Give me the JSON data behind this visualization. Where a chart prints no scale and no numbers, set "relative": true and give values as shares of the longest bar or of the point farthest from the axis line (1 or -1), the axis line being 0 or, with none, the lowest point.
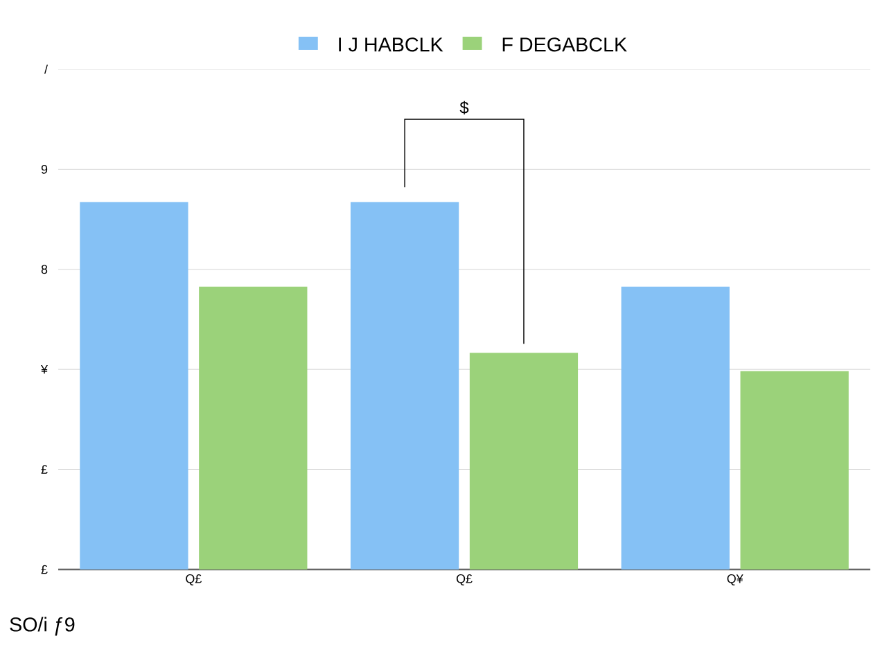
{
  "chart_data": {
    "type": "bar",
    "relative": true,
    "categories": [
      "Q£",
      "Q£",
      "Q¥"
    ],
    "series": [
      {
        "name": "I J HABCLK",
        "color": "#85c1f5",
        "values": [
          1,
          1,
          0.77
        ]
      },
      {
        "name": "F DEGABCLK",
        "color": "#9bd27a",
        "values": [
          0.77,
          0.59,
          0.54
        ]
      }
    ],
    "grid": "y",
    "legend": "top",
    "annotations": [
      "$",
      "SO/i ƒ9",
      "£",
      "£",
      "¥",
      "8",
      "9",
      "/"
    ]
  }
}
